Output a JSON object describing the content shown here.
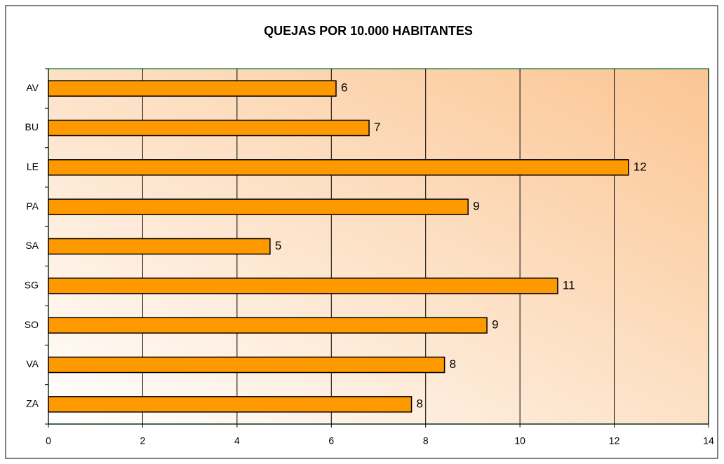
{
  "chart_data": {
    "type": "bar",
    "orientation": "horizontal",
    "title": "QUEJAS POR 10.000 HABITANTES",
    "categories": [
      "AV",
      "BU",
      "LE",
      "PA",
      "SA",
      "SG",
      "SO",
      "VA",
      "ZA"
    ],
    "values": [
      6.1,
      6.8,
      12.3,
      8.9,
      4.7,
      10.8,
      9.3,
      8.4,
      7.7
    ],
    "value_labels": [
      "6",
      "7",
      "12",
      "9",
      "5",
      "11",
      "9",
      "8",
      "8"
    ],
    "color": "#ff9900",
    "xlim": [
      0,
      14
    ],
    "xticks": [
      0,
      2,
      4,
      6,
      8,
      10,
      12,
      14
    ],
    "grid": true
  }
}
